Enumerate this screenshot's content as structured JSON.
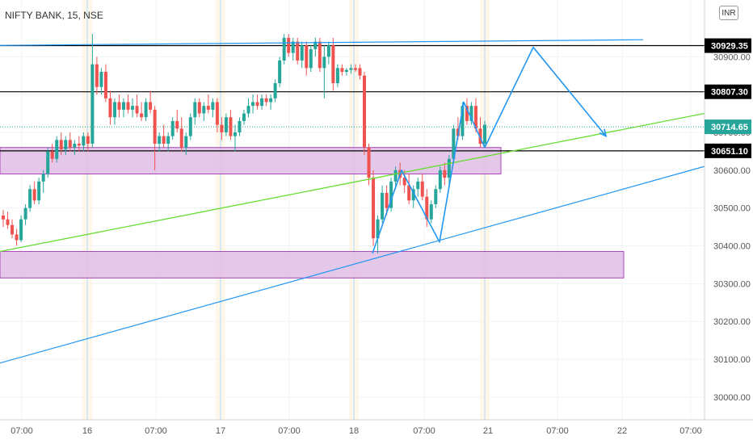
{
  "chart_data": {
    "type": "candlestick",
    "title": "NIFTY BANK, 15, NSE",
    "currency": "INR",
    "y_axis": {
      "ticks": [
        30000,
        30100,
        30200,
        30300,
        30400,
        30500,
        30600,
        30700,
        30800,
        30900
      ],
      "tick_labels": [
        "30000.00",
        "30100.00",
        "30200.00",
        "30300.00",
        "30400.00",
        "30500.00",
        "30600.00",
        "30700.00",
        "30800.00",
        "30900.00"
      ],
      "range": [
        29940,
        31050
      ]
    },
    "x_axis": {
      "tick_labels": [
        "07:00",
        "16",
        "07:00",
        "17",
        "07:00",
        "18",
        "07:00",
        "21",
        "07:00",
        "22",
        "07:00"
      ]
    },
    "price_tags": [
      {
        "label": "30929.35",
        "value": 30929.35,
        "style": "black"
      },
      {
        "label": "30807.30",
        "value": 30807.3,
        "style": "black"
      },
      {
        "label": "30714.65",
        "value": 30714.65,
        "style": "teal"
      },
      {
        "label": "30651.10",
        "value": 30651.1,
        "style": "black"
      }
    ],
    "horizontal_levels": [
      30929.35,
      30807.3,
      30651.1
    ],
    "last_price": 30714.65,
    "colors": {
      "up": "#26a69a",
      "down": "#ef5350",
      "zone": "#e1bee7",
      "zone_border": "#9c27b0",
      "trend_green": "#66dd33",
      "trend_blue": "#2196f3",
      "projection": "#2196f3"
    },
    "candles_ohlc": [
      [
        30480,
        30495,
        30450,
        30470
      ],
      [
        30470,
        30490,
        30445,
        30455
      ],
      [
        30455,
        30470,
        30420,
        30430
      ],
      [
        30430,
        30445,
        30400,
        30415
      ],
      [
        30415,
        30480,
        30410,
        30470
      ],
      [
        30470,
        30510,
        30455,
        30500
      ],
      [
        30500,
        30560,
        30490,
        30550
      ],
      [
        30550,
        30570,
        30510,
        30520
      ],
      [
        30520,
        30580,
        30510,
        30570
      ],
      [
        30570,
        30600,
        30540,
        30590
      ],
      [
        30590,
        30660,
        30580,
        30650
      ],
      [
        30650,
        30670,
        30620,
        30630
      ],
      [
        30630,
        30690,
        30620,
        30680
      ],
      [
        30680,
        30700,
        30640,
        30655
      ],
      [
        30655,
        30690,
        30640,
        30680
      ],
      [
        30680,
        30700,
        30650,
        30660
      ],
      [
        30660,
        30680,
        30640,
        30670
      ],
      [
        30670,
        30690,
        30650,
        30665
      ],
      [
        30665,
        30700,
        30650,
        30690
      ],
      [
        30690,
        30700,
        30650,
        30670
      ],
      [
        30670,
        30960,
        30660,
        30880
      ],
      [
        30880,
        30900,
        30800,
        30820
      ],
      [
        30820,
        30870,
        30800,
        30860
      ],
      [
        30860,
        30880,
        30780,
        30790
      ],
      [
        30790,
        30810,
        30720,
        30740
      ],
      [
        30740,
        30790,
        30720,
        30780
      ],
      [
        30780,
        30800,
        30740,
        30760
      ],
      [
        30760,
        30790,
        30740,
        30780
      ],
      [
        30780,
        30800,
        30750,
        30760
      ],
      [
        30760,
        30790,
        30740,
        30770
      ],
      [
        30770,
        30800,
        30740,
        30750
      ],
      [
        30750,
        30780,
        30730,
        30740
      ],
      [
        30740,
        30790,
        30730,
        30780
      ],
      [
        30780,
        30810,
        30750,
        30760
      ],
      [
        30760,
        30770,
        30600,
        30670
      ],
      [
        30670,
        30700,
        30650,
        30690
      ],
      [
        30690,
        30720,
        30660,
        30670
      ],
      [
        30670,
        30700,
        30650,
        30690
      ],
      [
        30690,
        30740,
        30680,
        30730
      ],
      [
        30730,
        30760,
        30700,
        30710
      ],
      [
        30710,
        30740,
        30650,
        30660
      ],
      [
        30660,
        30700,
        30640,
        30690
      ],
      [
        30690,
        30750,
        30680,
        30740
      ],
      [
        30740,
        30790,
        30720,
        30780
      ],
      [
        30780,
        30790,
        30740,
        30750
      ],
      [
        30750,
        30780,
        30730,
        30770
      ],
      [
        30770,
        30800,
        30750,
        30760
      ],
      [
        30760,
        30790,
        30740,
        30780
      ],
      [
        30780,
        30790,
        30700,
        30720
      ],
      [
        30720,
        30740,
        30680,
        30700
      ],
      [
        30700,
        30750,
        30690,
        30740
      ],
      [
        30740,
        30760,
        30680,
        30690
      ],
      [
        30690,
        30720,
        30650,
        30700
      ],
      [
        30700,
        30740,
        30690,
        30730
      ],
      [
        30730,
        30760,
        30720,
        30750
      ],
      [
        30750,
        30790,
        30740,
        30770
      ],
      [
        30770,
        30800,
        30750,
        30780
      ],
      [
        30780,
        30800,
        30760,
        30770
      ],
      [
        30770,
        30800,
        30760,
        30790
      ],
      [
        30790,
        30800,
        30770,
        30780
      ],
      [
        30780,
        30800,
        30760,
        30790
      ],
      [
        30790,
        30840,
        30780,
        30830
      ],
      [
        30830,
        30900,
        30820,
        30890
      ],
      [
        30890,
        30960,
        30880,
        30950
      ],
      [
        30950,
        30960,
        30900,
        30910
      ],
      [
        30910,
        30950,
        30890,
        30940
      ],
      [
        30940,
        30950,
        30880,
        30890
      ],
      [
        30890,
        30940,
        30870,
        30930
      ],
      [
        30930,
        30940,
        30850,
        30870
      ],
      [
        30870,
        30930,
        30860,
        30920
      ],
      [
        30920,
        30950,
        30900,
        30940
      ],
      [
        30940,
        30950,
        30860,
        30870
      ],
      [
        30870,
        30930,
        30790,
        30900
      ],
      [
        30900,
        30940,
        30880,
        30930
      ],
      [
        30930,
        30950,
        30810,
        30830
      ],
      [
        30830,
        30880,
        30820,
        30870
      ],
      [
        30870,
        30880,
        30850,
        30860
      ],
      [
        30860,
        30870,
        30850,
        30865
      ],
      [
        30865,
        30880,
        30855,
        30870
      ],
      [
        30870,
        30880,
        30860,
        30865
      ],
      [
        30870,
        30880,
        30840,
        30850
      ],
      [
        30850,
        30860,
        30640,
        30660
      ],
      [
        30660,
        30670,
        30560,
        30580
      ],
      [
        30580,
        30600,
        30400,
        30420
      ],
      [
        30420,
        30480,
        30380,
        30470
      ],
      [
        30470,
        30560,
        30460,
        30540
      ],
      [
        30540,
        30560,
        30480,
        30500
      ],
      [
        30500,
        30580,
        30490,
        30570
      ],
      [
        30570,
        30610,
        30550,
        30600
      ],
      [
        30600,
        30620,
        30560,
        30580
      ],
      [
        30580,
        30600,
        30540,
        30560
      ],
      [
        30560,
        30590,
        30510,
        30520
      ],
      [
        30520,
        30560,
        30500,
        30550
      ],
      [
        30550,
        30580,
        30530,
        30570
      ],
      [
        30570,
        30590,
        30520,
        30530
      ],
      [
        30530,
        30550,
        30450,
        30470
      ],
      [
        30470,
        30520,
        30460,
        30510
      ],
      [
        30510,
        30560,
        30500,
        30550
      ],
      [
        30550,
        30610,
        30540,
        30600
      ],
      [
        30600,
        30620,
        30560,
        30580
      ],
      [
        30580,
        30640,
        30560,
        30630
      ],
      [
        30630,
        30720,
        30620,
        30710
      ],
      [
        30710,
        30740,
        30680,
        30690
      ],
      [
        30690,
        30780,
        30680,
        30770
      ],
      [
        30770,
        30790,
        30720,
        30730
      ],
      [
        30730,
        30780,
        30720,
        30770
      ],
      [
        30770,
        30790,
        30700,
        30710
      ],
      [
        30710,
        30740,
        30660,
        30670
      ],
      [
        30670,
        30730,
        30660,
        30720
      ]
    ]
  }
}
